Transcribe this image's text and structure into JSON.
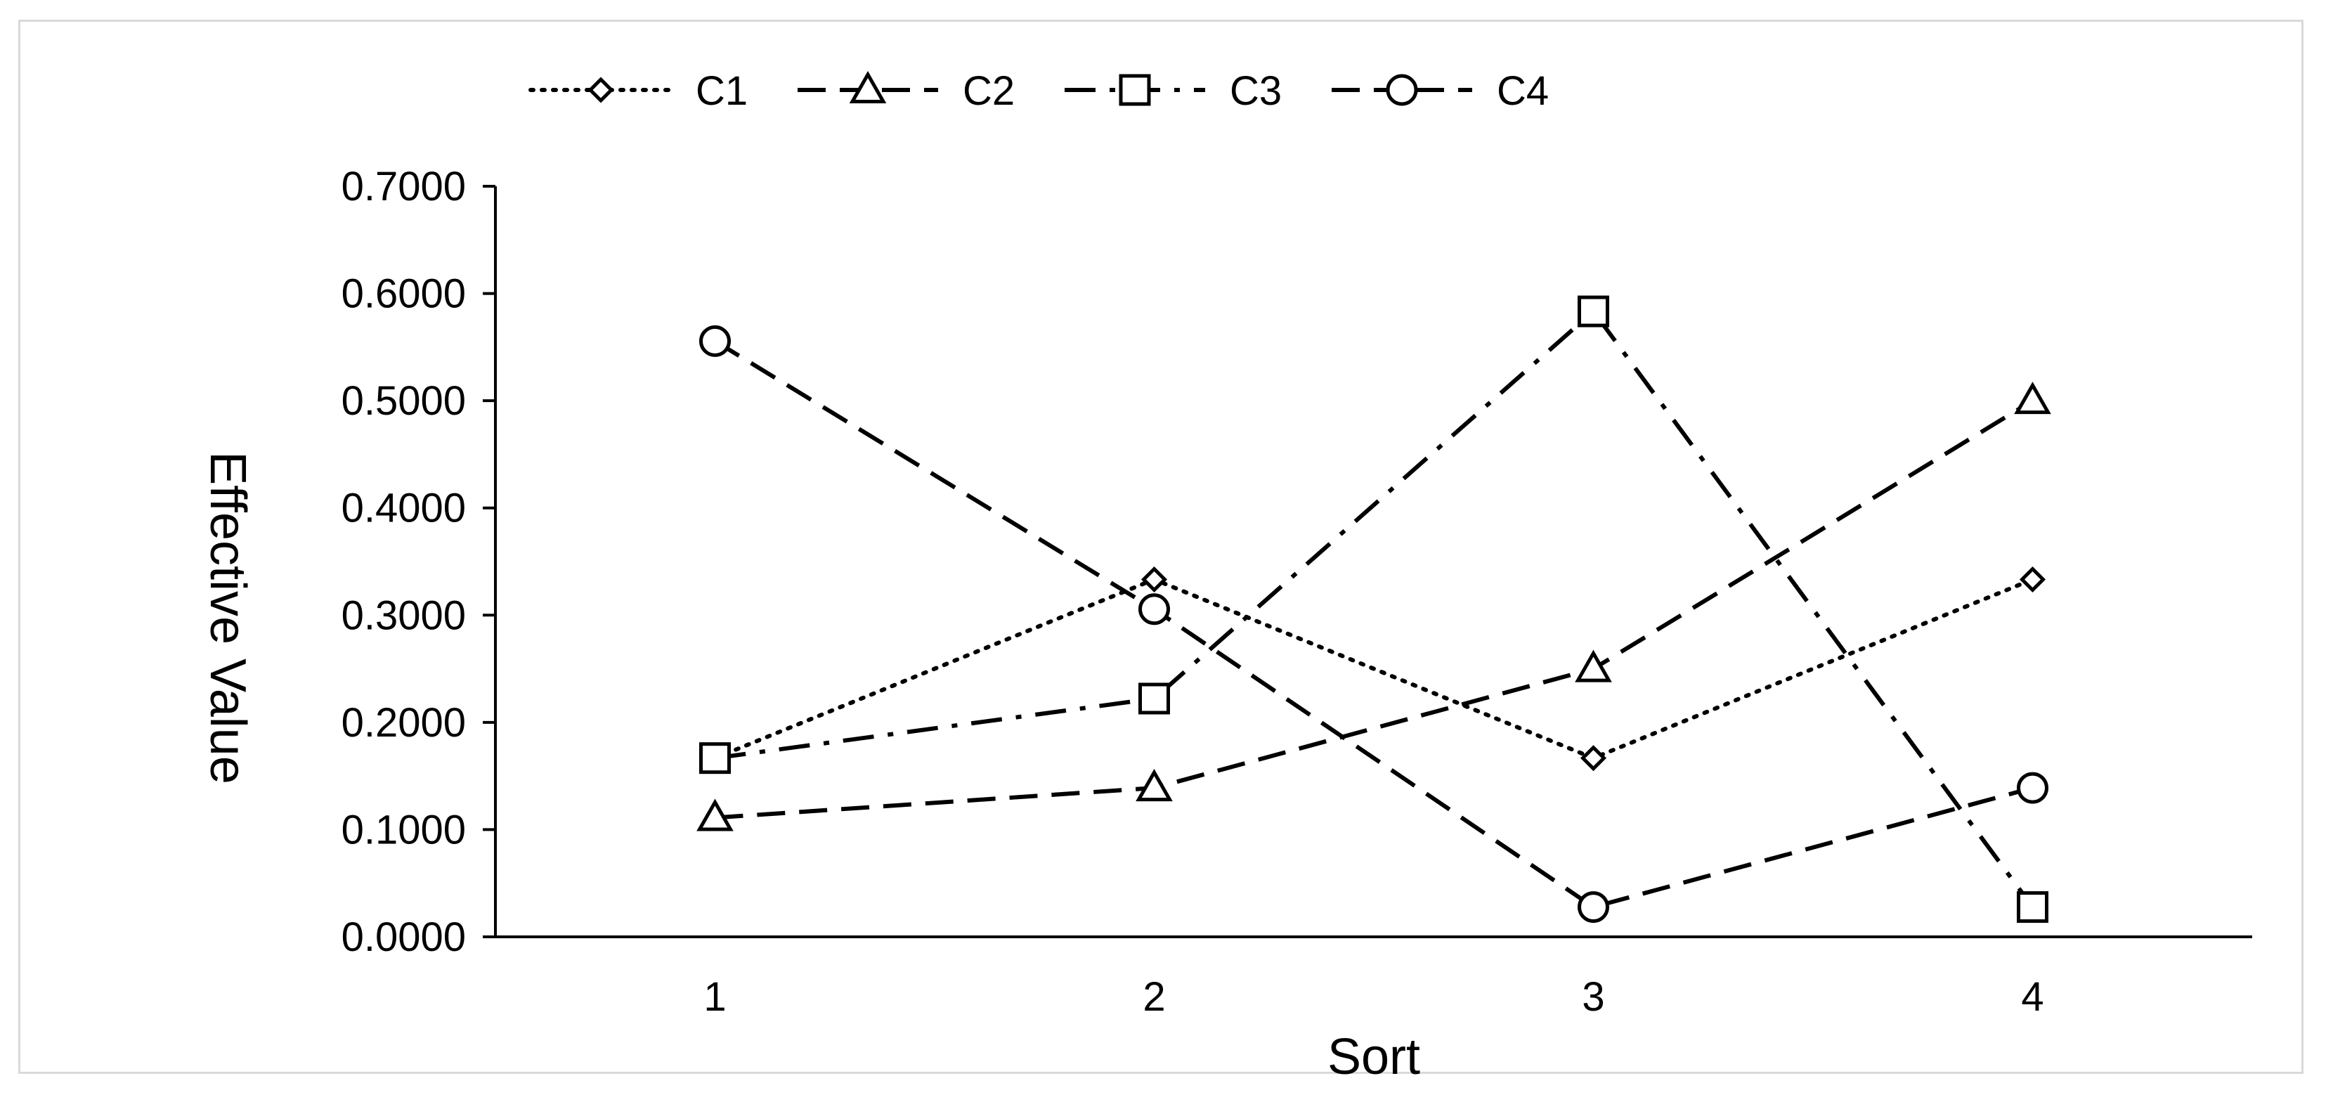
{
  "chart_data": {
    "type": "line",
    "title": "",
    "xlabel": "Sort",
    "ylabel": "Effective Value",
    "categories": [
      "1",
      "2",
      "3",
      "4"
    ],
    "ylim": [
      0,
      0.7
    ],
    "y_ticks": [
      "0.0000",
      "0.1000",
      "0.2000",
      "0.3000",
      "0.4000",
      "0.5000",
      "0.6000",
      "0.7000"
    ],
    "grid": false,
    "legend_position": "top",
    "series": [
      {
        "name": "C1",
        "values": [
          0.1667,
          0.3333,
          0.1667,
          0.3333
        ],
        "marker": "diamond",
        "line_style": "dotted",
        "color": "#000000"
      },
      {
        "name": "C2",
        "values": [
          0.1111,
          0.1389,
          0.25,
          0.5
        ],
        "marker": "triangle",
        "line_style": "dashed",
        "color": "#000000"
      },
      {
        "name": "C3",
        "values": [
          0.1667,
          0.2222,
          0.5833,
          0.0278
        ],
        "marker": "square",
        "line_style": "dash-dot",
        "color": "#000000"
      },
      {
        "name": "C4",
        "values": [
          0.5556,
          0.3056,
          0.0278,
          0.1389
        ],
        "marker": "circle",
        "line_style": "dashed",
        "color": "#000000"
      }
    ]
  }
}
